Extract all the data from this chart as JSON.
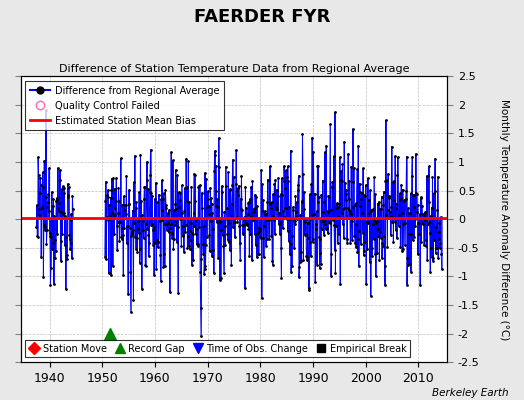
{
  "title": "FAERDER FYR",
  "subtitle": "Difference of Station Temperature Data from Regional Average",
  "ylabel": "Monthly Temperature Anomaly Difference (°C)",
  "xlim": [
    1934.5,
    2015.5
  ],
  "ylim": [
    -2.5,
    2.5
  ],
  "yticks": [
    -2.5,
    -2,
    -1.5,
    -1,
    -0.5,
    0,
    0.5,
    1,
    1.5,
    2,
    2.5
  ],
  "xticks": [
    1940,
    1950,
    1960,
    1970,
    1980,
    1990,
    2000,
    2010
  ],
  "mean_bias": 0.02,
  "line_color": "#0000FF",
  "fill_color": "#9999FF",
  "dot_color": "#000000",
  "bias_color": "#FF0000",
  "bg_color": "#E8E8E8",
  "plot_bg_color": "#FFFFFF",
  "watermark": "Berkeley Earth",
  "seed": 12345,
  "seg1_start": 1937.5,
  "seg1_end": 1944.5,
  "seg2_start": 1950.5,
  "seg2_end": 2014.5,
  "record_gap_x": 1951.5,
  "record_gap_y": -2.0
}
